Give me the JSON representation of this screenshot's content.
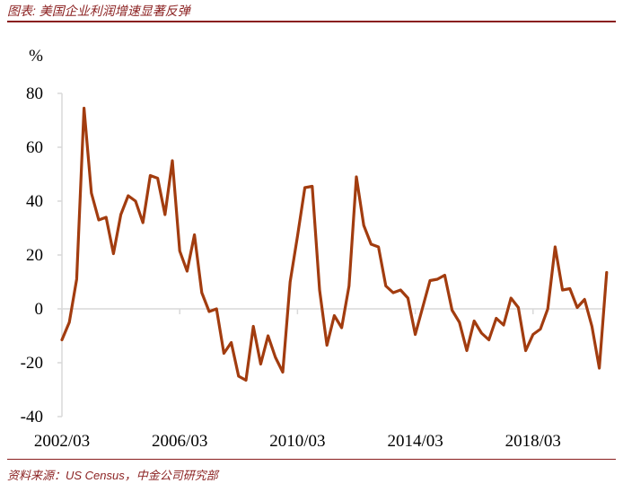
{
  "header": {
    "title": "图表: 美国企业利润增速显著反弹"
  },
  "footer": {
    "source": "资料来源：US Census，中金公司研究部"
  },
  "colors": {
    "accent": "#8a1f1f",
    "line": "#a23c0f",
    "axis": "#d9d9d9"
  },
  "chart_data": {
    "type": "line",
    "ylabel": "%",
    "ylim": [
      -40,
      80
    ],
    "yticks": [
      -40,
      -20,
      0,
      20,
      40,
      60,
      80
    ],
    "xticks": [
      "2002/03",
      "2006/03",
      "2010/03",
      "2014/03",
      "2018/03"
    ],
    "grid": false,
    "series": [
      {
        "x": [
          "2002Q1",
          "2002Q2",
          "2002Q3",
          "2002Q4",
          "2003Q1",
          "2003Q2",
          "2003Q3",
          "2003Q4",
          "2004Q1",
          "2004Q2",
          "2004Q3",
          "2004Q4",
          "2005Q1",
          "2005Q2",
          "2005Q3",
          "2005Q4",
          "2006Q1",
          "2006Q2",
          "2006Q3",
          "2006Q4",
          "2007Q1",
          "2007Q2",
          "2007Q3",
          "2007Q4",
          "2008Q1",
          "2008Q2",
          "2008Q3",
          "2008Q4",
          "2009Q1",
          "2009Q2",
          "2009Q3",
          "2009Q4",
          "2010Q1",
          "2010Q2",
          "2010Q3",
          "2010Q4",
          "2011Q1",
          "2011Q2",
          "2011Q3",
          "2011Q4",
          "2012Q1",
          "2012Q2",
          "2012Q3",
          "2012Q4",
          "2013Q1",
          "2013Q2",
          "2013Q3",
          "2013Q4",
          "2014Q1",
          "2014Q2",
          "2014Q3",
          "2014Q4",
          "2015Q1",
          "2015Q2",
          "2015Q3",
          "2015Q4",
          "2016Q1",
          "2016Q2",
          "2016Q3",
          "2016Q4",
          "2017Q1",
          "2017Q2",
          "2017Q3",
          "2017Q4",
          "2018Q1",
          "2018Q2",
          "2018Q3",
          "2018Q4",
          "2019Q1",
          "2019Q2",
          "2019Q3",
          "2019Q4",
          "2020Q1",
          "2020Q2",
          "2020Q3"
        ],
        "values": [
          -11.5,
          -5,
          11,
          74.5,
          43,
          33,
          34,
          20.5,
          35,
          42,
          40,
          32,
          49.5,
          48.5,
          35,
          55,
          21.5,
          14,
          27.5,
          6,
          -1,
          0,
          -16.5,
          -12.5,
          -25,
          -26.5,
          -6.5,
          -20.5,
          -10,
          -18,
          -23.5,
          10,
          27,
          45,
          45.5,
          7,
          -13.5,
          -2.5,
          -7,
          8.5,
          49,
          31,
          24,
          23,
          8.5,
          6,
          7,
          4,
          -9.5,
          0.5,
          10.5,
          11,
          12.5,
          -0.5,
          -5,
          -15.5,
          -4.5,
          -9,
          -11.5,
          -3.5,
          -6,
          4,
          0.5,
          -15.5,
          -9.5,
          -7.5,
          0,
          23,
          7,
          7.5,
          0.5,
          3.5,
          -6.5,
          -22,
          13.5
        ]
      }
    ]
  }
}
